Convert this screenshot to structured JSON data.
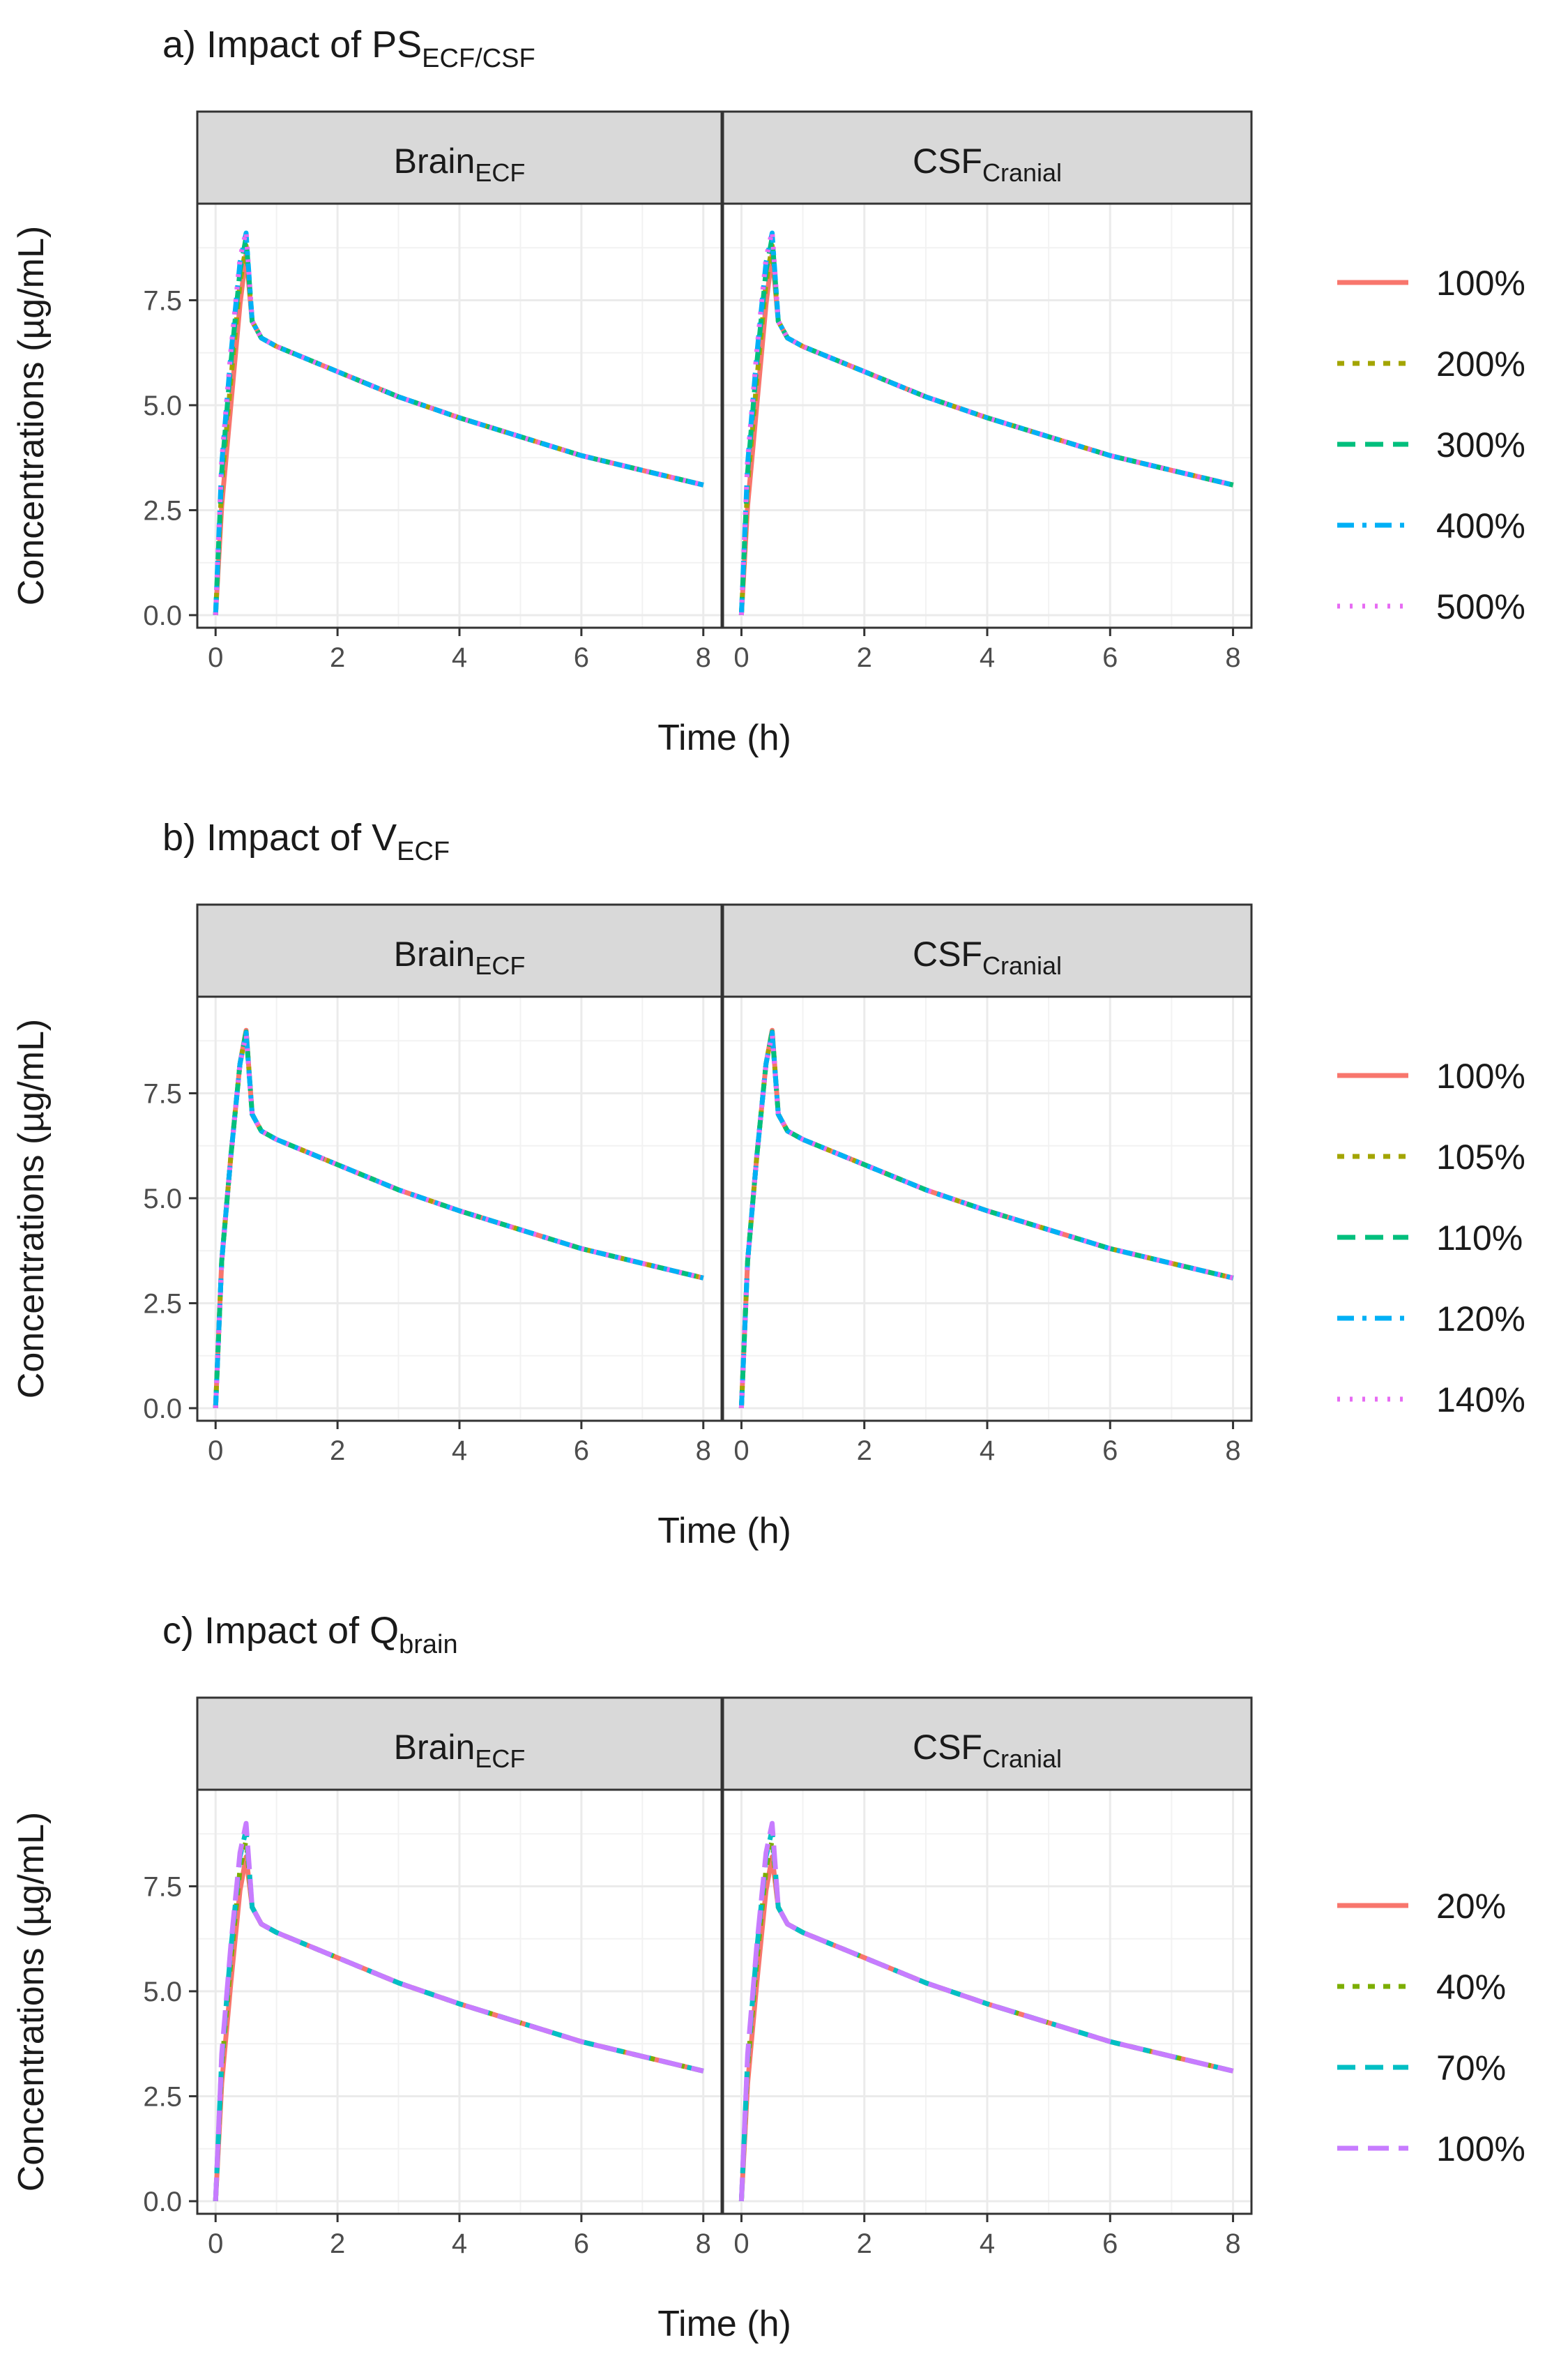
{
  "chart_data": [
    {
      "type": "line",
      "title": "a) Impact of PS",
      "title_subscript": "ECF/CSF",
      "xlabel": "Time (h)",
      "ylabel": "Concentrations (µg/mL)",
      "xlim": [
        -0.3,
        8.3
      ],
      "ylim": [
        -0.3,
        9.8
      ],
      "xticks": [
        0,
        2,
        4,
        6,
        8
      ],
      "yticks": [
        0.0,
        2.5,
        5.0,
        7.5
      ],
      "ytick_labels": [
        "0.0",
        "2.5",
        "5.0",
        "7.5"
      ],
      "legend_position": "right",
      "facets": [
        {
          "base": "Brain",
          "sub": "ECF"
        },
        {
          "base": "CSF",
          "sub": "Cranial"
        }
      ],
      "series": [
        {
          "name": "100%",
          "color": "#F8766D",
          "dash": "solid",
          "peak": 8.6,
          "x": [
            0,
            0.1,
            0.25,
            0.4,
            0.5,
            0.6,
            0.75,
            1,
            2,
            3,
            4,
            5,
            6,
            7,
            8
          ],
          "values": [
            0,
            2.6,
            5.0,
            7.4,
            8.6,
            7.0,
            6.6,
            6.4,
            5.8,
            5.2,
            4.7,
            4.25,
            3.8,
            3.45,
            3.1
          ]
        },
        {
          "name": "200%",
          "color": "#A3A500",
          "dash": "short",
          "peak": 8.8,
          "x": [
            0,
            0.1,
            0.25,
            0.4,
            0.5,
            0.6,
            0.75,
            1,
            2,
            3,
            4,
            5,
            6,
            7,
            8
          ],
          "values": [
            0,
            3.1,
            5.6,
            7.9,
            8.8,
            7.0,
            6.6,
            6.4,
            5.8,
            5.2,
            4.7,
            4.25,
            3.8,
            3.45,
            3.1
          ]
        },
        {
          "name": "300%",
          "color": "#00BF7D",
          "dash": "dash",
          "peak": 9.0,
          "x": [
            0,
            0.1,
            0.25,
            0.4,
            0.5,
            0.6,
            0.75,
            1,
            2,
            3,
            4,
            5,
            6,
            7,
            8
          ],
          "values": [
            0,
            3.4,
            6.0,
            8.2,
            9.0,
            7.0,
            6.6,
            6.4,
            5.8,
            5.2,
            4.7,
            4.25,
            3.8,
            3.45,
            3.1
          ]
        },
        {
          "name": "400%",
          "color": "#00B0F6",
          "dash": "dashdot",
          "peak": 9.1,
          "x": [
            0,
            0.1,
            0.25,
            0.4,
            0.5,
            0.6,
            0.75,
            1,
            2,
            3,
            4,
            5,
            6,
            7,
            8
          ],
          "values": [
            0,
            3.6,
            6.2,
            8.4,
            9.1,
            7.0,
            6.6,
            6.4,
            5.8,
            5.2,
            4.7,
            4.25,
            3.8,
            3.45,
            3.1
          ]
        },
        {
          "name": "500%",
          "color": "#E76BF3",
          "dash": "dot",
          "peak": 9.15,
          "x": [
            0,
            0.1,
            0.25,
            0.4,
            0.5,
            0.6,
            0.75,
            1,
            2,
            3,
            4,
            5,
            6,
            7,
            8
          ],
          "values": [
            0,
            3.7,
            6.3,
            8.5,
            9.15,
            7.0,
            6.6,
            6.4,
            5.8,
            5.2,
            4.7,
            4.25,
            3.8,
            3.45,
            3.1
          ]
        }
      ]
    },
    {
      "type": "line",
      "title": "b) Impact of V",
      "title_subscript": "ECF",
      "xlabel": "Time (h)",
      "ylabel": "Concentrations (µg/mL)",
      "xlim": [
        -0.3,
        8.3
      ],
      "ylim": [
        -0.3,
        9.8
      ],
      "xticks": [
        0,
        2,
        4,
        6,
        8
      ],
      "yticks": [
        0.0,
        2.5,
        5.0,
        7.5
      ],
      "ytick_labels": [
        "0.0",
        "2.5",
        "5.0",
        "7.5"
      ],
      "legend_position": "right",
      "facets": [
        {
          "base": "Brain",
          "sub": "ECF"
        },
        {
          "base": "CSF",
          "sub": "Cranial"
        }
      ],
      "series": [
        {
          "name": "100%",
          "color": "#F8766D",
          "dash": "solid",
          "peak": 9.0,
          "x": [
            0,
            0.1,
            0.25,
            0.4,
            0.5,
            0.6,
            0.75,
            1,
            2,
            3,
            4,
            5,
            6,
            7,
            8
          ],
          "values": [
            0,
            3.5,
            6.0,
            8.2,
            9.0,
            7.0,
            6.6,
            6.4,
            5.8,
            5.2,
            4.7,
            4.25,
            3.8,
            3.45,
            3.1
          ]
        },
        {
          "name": "105%",
          "color": "#A3A500",
          "dash": "short",
          "peak": 8.98,
          "x": [
            0,
            0.1,
            0.25,
            0.4,
            0.5,
            0.6,
            0.75,
            1,
            2,
            3,
            4,
            5,
            6,
            7,
            8
          ],
          "values": [
            0,
            3.5,
            6.0,
            8.2,
            8.98,
            7.0,
            6.6,
            6.4,
            5.8,
            5.2,
            4.7,
            4.25,
            3.8,
            3.45,
            3.1
          ]
        },
        {
          "name": "110%",
          "color": "#00BF7D",
          "dash": "dash",
          "peak": 8.96,
          "x": [
            0,
            0.1,
            0.25,
            0.4,
            0.5,
            0.6,
            0.75,
            1,
            2,
            3,
            4,
            5,
            6,
            7,
            8
          ],
          "values": [
            0,
            3.5,
            6.0,
            8.2,
            8.96,
            7.0,
            6.6,
            6.4,
            5.8,
            5.2,
            4.7,
            4.25,
            3.8,
            3.45,
            3.1
          ]
        },
        {
          "name": "120%",
          "color": "#00B0F6",
          "dash": "dashdot",
          "peak": 8.94,
          "x": [
            0,
            0.1,
            0.25,
            0.4,
            0.5,
            0.6,
            0.75,
            1,
            2,
            3,
            4,
            5,
            6,
            7,
            8
          ],
          "values": [
            0,
            3.5,
            6.0,
            8.2,
            8.94,
            7.0,
            6.6,
            6.4,
            5.8,
            5.2,
            4.7,
            4.25,
            3.8,
            3.45,
            3.1
          ]
        },
        {
          "name": "140%",
          "color": "#E76BF3",
          "dash": "dot",
          "peak": 8.9,
          "x": [
            0,
            0.1,
            0.25,
            0.4,
            0.5,
            0.6,
            0.75,
            1,
            2,
            3,
            4,
            5,
            6,
            7,
            8
          ],
          "values": [
            0,
            3.5,
            6.0,
            8.2,
            8.9,
            7.0,
            6.6,
            6.4,
            5.8,
            5.2,
            4.7,
            4.25,
            3.8,
            3.45,
            3.1
          ]
        }
      ]
    },
    {
      "type": "line",
      "title": "c) Impact of Q",
      "title_subscript": "brain",
      "xlabel": "Time (h)",
      "ylabel": "Concentrations (µg/mL)",
      "xlim": [
        -0.3,
        8.3
      ],
      "ylim": [
        -0.3,
        9.8
      ],
      "xticks": [
        0,
        2,
        4,
        6,
        8
      ],
      "yticks": [
        0.0,
        2.5,
        5.0,
        7.5
      ],
      "ytick_labels": [
        "0.0",
        "2.5",
        "5.0",
        "7.5"
      ],
      "legend_position": "right",
      "facets": [
        {
          "base": "Brain",
          "sub": "ECF"
        },
        {
          "base": "CSF",
          "sub": "Cranial"
        }
      ],
      "series": [
        {
          "name": "20%",
          "color": "#F8766D",
          "dash": "solid",
          "peak": 8.2,
          "x": [
            0,
            0.1,
            0.25,
            0.4,
            0.5,
            0.6,
            0.75,
            1,
            2,
            3,
            4,
            5,
            6,
            7,
            8
          ],
          "values": [
            0,
            2.8,
            5.2,
            7.4,
            8.2,
            7.0,
            6.6,
            6.4,
            5.8,
            5.2,
            4.7,
            4.25,
            3.8,
            3.45,
            3.1
          ]
        },
        {
          "name": "40%",
          "color": "#7CAE00",
          "dash": "short",
          "peak": 8.6,
          "x": [
            0,
            0.1,
            0.25,
            0.4,
            0.5,
            0.6,
            0.75,
            1,
            2,
            3,
            4,
            5,
            6,
            7,
            8
          ],
          "values": [
            0,
            3.2,
            5.7,
            7.9,
            8.6,
            7.0,
            6.6,
            6.4,
            5.8,
            5.2,
            4.7,
            4.25,
            3.8,
            3.45,
            3.1
          ]
        },
        {
          "name": "70%",
          "color": "#00BFC4",
          "dash": "dash",
          "peak": 8.85,
          "x": [
            0,
            0.1,
            0.25,
            0.4,
            0.5,
            0.6,
            0.75,
            1,
            2,
            3,
            4,
            5,
            6,
            7,
            8
          ],
          "values": [
            0,
            3.4,
            6.0,
            8.2,
            8.85,
            7.0,
            6.6,
            6.4,
            5.8,
            5.2,
            4.7,
            4.25,
            3.8,
            3.45,
            3.1
          ]
        },
        {
          "name": "100%",
          "color": "#C77CFF",
          "dash": "longdash",
          "peak": 9.0,
          "x": [
            0,
            0.1,
            0.25,
            0.4,
            0.5,
            0.6,
            0.75,
            1,
            2,
            3,
            4,
            5,
            6,
            7,
            8
          ],
          "values": [
            0,
            3.5,
            6.1,
            8.3,
            9.0,
            7.0,
            6.6,
            6.4,
            5.8,
            5.2,
            4.7,
            4.25,
            3.8,
            3.45,
            3.1
          ]
        }
      ]
    }
  ]
}
